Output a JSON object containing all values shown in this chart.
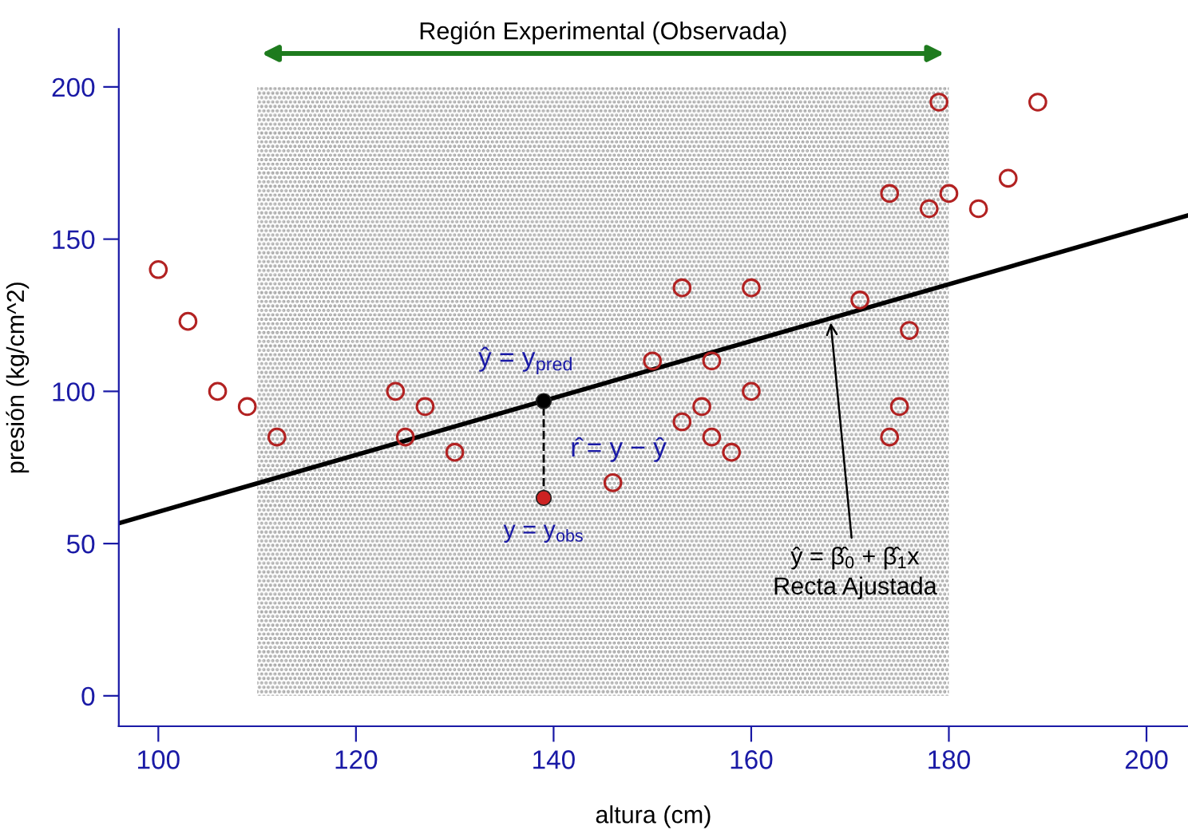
{
  "chart_data": {
    "type": "scatter",
    "xlabel": "altura (cm)",
    "ylabel": "presión (kg/cm^2)",
    "xlim": [
      96,
      204.2
    ],
    "ylim": [
      -10,
      219
    ],
    "xticks": [
      100,
      120,
      140,
      160,
      180,
      200
    ],
    "yticks": [
      0,
      50,
      100,
      150,
      200
    ],
    "grid": false,
    "series": [
      {
        "color": "#b22222",
        "marker": "circle",
        "x": [
          100,
          103,
          106,
          109,
          112,
          124,
          125,
          127,
          130,
          146,
          150,
          153,
          153,
          155,
          156,
          156,
          158,
          160,
          160,
          171,
          174,
          174,
          175,
          176,
          178,
          179,
          180,
          183,
          186,
          189
        ],
        "values": [
          140,
          123,
          100,
          95,
          85,
          100,
          85,
          95,
          80,
          70,
          110,
          134,
          90,
          95,
          110,
          85,
          80,
          134,
          100,
          130,
          165,
          85,
          95,
          120,
          160,
          195,
          165,
          160,
          170,
          195
        ]
      },
      {
        "type": "line",
        "color": "#000000",
        "marker": "none",
        "x": [
          96,
          204.2
        ],
        "values": [
          56.7,
          157.8
        ],
        "line_style": "solid"
      },
      {
        "type": "line",
        "color": "#000000",
        "marker": "circle",
        "colors": [
          "#cc2222",
          "#000000"
        ],
        "x": [
          139,
          139
        ],
        "values": [
          65,
          96.8
        ],
        "line_style": "dashed"
      }
    ],
    "bands": [
      {
        "axis": "x",
        "from": 110,
        "to": 180,
        "label": "Región Experimental (Observada)",
        "color": "#1e7b1e"
      }
    ],
    "annotations": [
      "ŷ = y$_{pred}$",
      "r̂ = y − ŷ",
      "y = y$_{obs}$",
      {
        "text": "ŷ = β̂$_{0}$ + β̂$_{1}$x\nRecta Ajustada",
        "x": 168,
        "y": 124
      }
    ]
  }
}
